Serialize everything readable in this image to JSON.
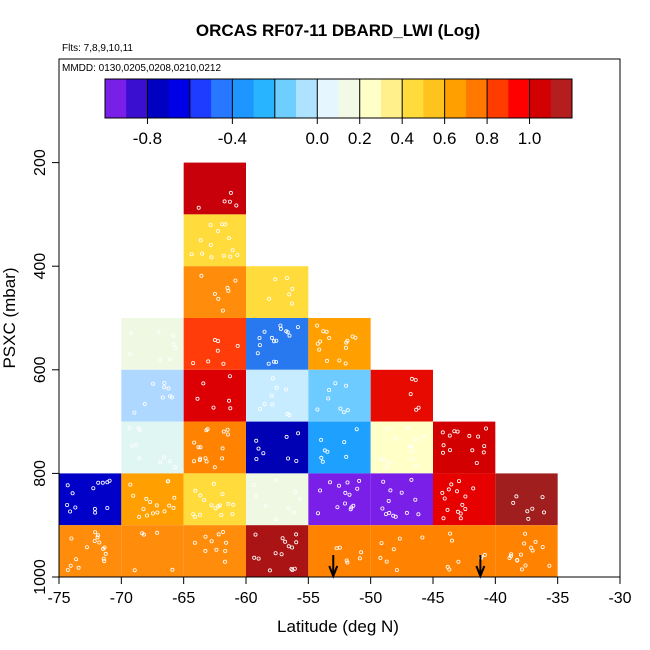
{
  "chart_data": {
    "type": "heatmap",
    "title": "ORCAS RF07-11 DBARD_LWI (Log)",
    "flights_note": "Flts: 7,8,9,10,11",
    "dates_note": "MMDD: 0130,0205,0208,0210,0212",
    "xlabel": "Latitude (deg N)",
    "ylabel": "PSXC (mbar)",
    "xlim": [
      -75,
      -30
    ],
    "ylim": [
      1000,
      0
    ],
    "xticks": [
      -75,
      -70,
      -65,
      -60,
      -55,
      -50,
      -45,
      -40,
      -35,
      -30
    ],
    "yticks": [
      200,
      400,
      600,
      800,
      1000
    ],
    "colorbar": {
      "range": [
        -1.0,
        1.2
      ],
      "tick_values": [
        -0.8,
        -0.4,
        0.0,
        0.2,
        0.4,
        0.6,
        0.8,
        1.0
      ],
      "tick_labels": [
        "-0.8",
        "-0.4",
        "0.0",
        "0.2",
        "0.4",
        "0.6",
        "0.8",
        "1.0"
      ],
      "segments": [
        {
          "from": -1.0,
          "to": -0.9,
          "color": "#7a1fe8"
        },
        {
          "from": -0.9,
          "to": -0.8,
          "color": "#3a0fcf"
        },
        {
          "from": -0.8,
          "to": -0.7,
          "color": "#0000c0"
        },
        {
          "from": -0.7,
          "to": -0.6,
          "color": "#0000e6"
        },
        {
          "from": -0.6,
          "to": -0.5,
          "color": "#1e3cff"
        },
        {
          "from": -0.5,
          "to": -0.4,
          "color": "#2878ff"
        },
        {
          "from": -0.4,
          "to": -0.3,
          "color": "#1e96ff"
        },
        {
          "from": -0.3,
          "to": -0.2,
          "color": "#28b4ff"
        },
        {
          "from": -0.2,
          "to": -0.1,
          "color": "#6ecfff"
        },
        {
          "from": -0.1,
          "to": 0.0,
          "color": "#aee2ff"
        },
        {
          "from": 0.0,
          "to": 0.1,
          "color": "#e6f6ff"
        },
        {
          "from": 0.1,
          "to": 0.2,
          "color": "#f2fae6"
        },
        {
          "from": 0.2,
          "to": 0.3,
          "color": "#ffffc8"
        },
        {
          "from": 0.3,
          "to": 0.4,
          "color": "#fff08c"
        },
        {
          "from": 0.4,
          "to": 0.5,
          "color": "#ffdc3c"
        },
        {
          "from": 0.5,
          "to": 0.6,
          "color": "#ffc31e"
        },
        {
          "from": 0.6,
          "to": 0.7,
          "color": "#ffa000"
        },
        {
          "from": 0.7,
          "to": 0.8,
          "color": "#ff7800"
        },
        {
          "from": 0.8,
          "to": 0.9,
          "color": "#ff3c00"
        },
        {
          "from": 0.9,
          "to": 1.0,
          "color": "#ff0000"
        },
        {
          "from": 1.0,
          "to": 1.1,
          "color": "#d20000"
        },
        {
          "from": 1.1,
          "to": 1.2,
          "color": "#b41e1e"
        }
      ]
    },
    "cells": [
      {
        "lat": [
          -65,
          -60
        ],
        "p": [
          200,
          300
        ],
        "color": "#c8000a"
      },
      {
        "lat": [
          -65,
          -60
        ],
        "p": [
          300,
          400
        ],
        "color": "#ffdc3c"
      },
      {
        "lat": [
          -65,
          -60
        ],
        "p": [
          400,
          500
        ],
        "color": "#ff8c0a"
      },
      {
        "lat": [
          -60,
          -55
        ],
        "p": [
          400,
          500
        ],
        "color": "#ffdc3c"
      },
      {
        "lat": [
          -70,
          -65
        ],
        "p": [
          500,
          600
        ],
        "color": "#eef8e2"
      },
      {
        "lat": [
          -65,
          -60
        ],
        "p": [
          500,
          600
        ],
        "color": "#ff3c0a"
      },
      {
        "lat": [
          -60,
          -55
        ],
        "p": [
          500,
          600
        ],
        "color": "#2878f0"
      },
      {
        "lat": [
          -55,
          -50
        ],
        "p": [
          500,
          600
        ],
        "color": "#ffa000"
      },
      {
        "lat": [
          -70,
          -65
        ],
        "p": [
          600,
          700
        ],
        "color": "#aed8ff"
      },
      {
        "lat": [
          -65,
          -60
        ],
        "p": [
          600,
          700
        ],
        "color": "#dc0005"
      },
      {
        "lat": [
          -60,
          -55
        ],
        "p": [
          600,
          700
        ],
        "color": "#c8ecff"
      },
      {
        "lat": [
          -55,
          -50
        ],
        "p": [
          600,
          700
        ],
        "color": "#6ecbff"
      },
      {
        "lat": [
          -50,
          -45
        ],
        "p": [
          600,
          700
        ],
        "color": "#e60a00"
      },
      {
        "lat": [
          -70,
          -65
        ],
        "p": [
          700,
          800
        ],
        "color": "#e0f6f2"
      },
      {
        "lat": [
          -65,
          -60
        ],
        "p": [
          700,
          800
        ],
        "color": "#ff8200"
      },
      {
        "lat": [
          -60,
          -55
        ],
        "p": [
          700,
          800
        ],
        "color": "#0000b4"
      },
      {
        "lat": [
          -55,
          -50
        ],
        "p": [
          700,
          800
        ],
        "color": "#1ea0ff"
      },
      {
        "lat": [
          -50,
          -45
        ],
        "p": [
          700,
          800
        ],
        "color": "#ffffc8"
      },
      {
        "lat": [
          -45,
          -40
        ],
        "p": [
          700,
          800
        ],
        "color": "#d20000"
      },
      {
        "lat": [
          -75,
          -70
        ],
        "p": [
          800,
          900
        ],
        "color": "#0000c8"
      },
      {
        "lat": [
          -70,
          -65
        ],
        "p": [
          800,
          900
        ],
        "color": "#ffa000"
      },
      {
        "lat": [
          -65,
          -60
        ],
        "p": [
          800,
          900
        ],
        "color": "#ffdc3c"
      },
      {
        "lat": [
          -60,
          -55
        ],
        "p": [
          800,
          900
        ],
        "color": "#eef8e2"
      },
      {
        "lat": [
          -55,
          -50
        ],
        "p": [
          800,
          900
        ],
        "color": "#7a1fe8"
      },
      {
        "lat": [
          -50,
          -45
        ],
        "p": [
          800,
          900
        ],
        "color": "#7a1fe8"
      },
      {
        "lat": [
          -45,
          -40
        ],
        "p": [
          800,
          900
        ],
        "color": "#e60000"
      },
      {
        "lat": [
          -40,
          -35
        ],
        "p": [
          800,
          900
        ],
        "color": "#a01e1e"
      },
      {
        "lat": [
          -75,
          -70
        ],
        "p": [
          900,
          1000
        ],
        "color": "#ff8c0a"
      },
      {
        "lat": [
          -70,
          -65
        ],
        "p": [
          900,
          1000
        ],
        "color": "#ff8c0a"
      },
      {
        "lat": [
          -65,
          -60
        ],
        "p": [
          900,
          1000
        ],
        "color": "#ff8c0a"
      },
      {
        "lat": [
          -60,
          -55
        ],
        "p": [
          900,
          1000
        ],
        "color": "#aa1414"
      },
      {
        "lat": [
          -55,
          -50
        ],
        "p": [
          900,
          1000
        ],
        "color": "#ff8200"
      },
      {
        "lat": [
          -50,
          -45
        ],
        "p": [
          900,
          1000
        ],
        "color": "#ff8200"
      },
      {
        "lat": [
          -45,
          -40
        ],
        "p": [
          900,
          1000
        ],
        "color": "#ff8200"
      },
      {
        "lat": [
          -40,
          -35
        ],
        "p": [
          900,
          1000
        ],
        "color": "#ff8200"
      }
    ],
    "point_color": "#ffffff",
    "arrows_lat": [
      -53,
      -41.2
    ],
    "arrow_color": "#000000"
  }
}
